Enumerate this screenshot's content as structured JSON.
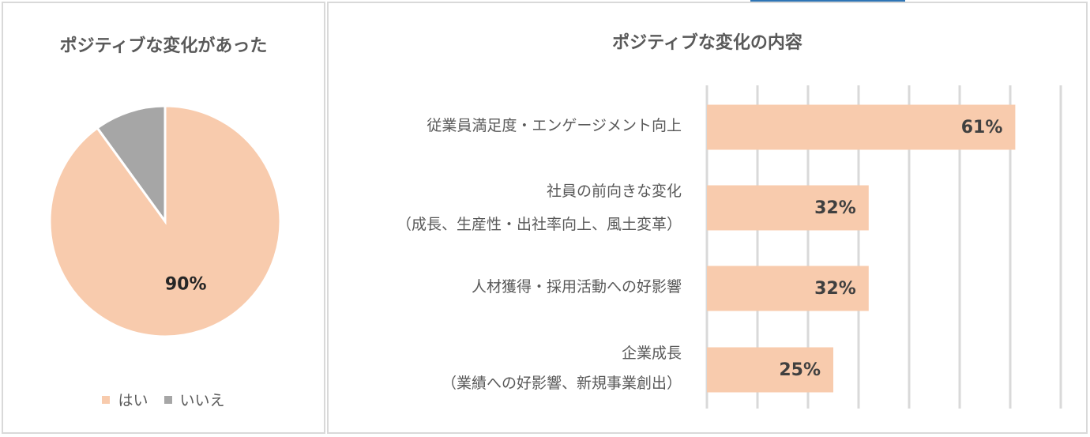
{
  "accent_color": "#2e75b6",
  "charts": {
    "pie": {
      "title": "ポジティブな変化があった",
      "legend": [
        {
          "label": "はい",
          "color": "#f8cbad"
        },
        {
          "label": "いいえ",
          "color": "#a6a6a6"
        }
      ]
    },
    "bar": {
      "title": "ポジティブな変化の内容",
      "labels": [
        {
          "line1": "従業員満足度・エンゲージメント向上",
          "line2": ""
        },
        {
          "line1": "社員の前向きな変化",
          "line2": "（成長、生産性・出社率向上、風土変革）"
        },
        {
          "line1": "人材獲得・採用活動への好影響",
          "line2": ""
        },
        {
          "line1": "企業成長",
          "line2": "（業績への好影響、新規事業創出）"
        }
      ]
    }
  },
  "chart_data": [
    {
      "type": "pie",
      "title": "ポジティブな変化があった",
      "categories": [
        "はい",
        "いいえ"
      ],
      "values": [
        90,
        10
      ],
      "data_labels": [
        "90%",
        ""
      ],
      "colors": [
        "#f8cbad",
        "#a6a6a6"
      ],
      "legend": "bottom"
    },
    {
      "type": "bar",
      "orientation": "horizontal",
      "title": "ポジティブな変化の内容",
      "categories": [
        "従業員満足度・エンゲージメント向上",
        "社員の前向きな変化（成長、生産性・出社率向上、風土変革）",
        "人材獲得・採用活動への好影響",
        "企業成長（業績への好影響、新規事業創出）"
      ],
      "values": [
        61,
        32,
        32,
        25
      ],
      "data_labels": [
        "61%",
        "32%",
        "32%",
        "25%"
      ],
      "xlim": [
        0,
        70
      ],
      "grid": true,
      "color": "#f8cbad"
    }
  ]
}
